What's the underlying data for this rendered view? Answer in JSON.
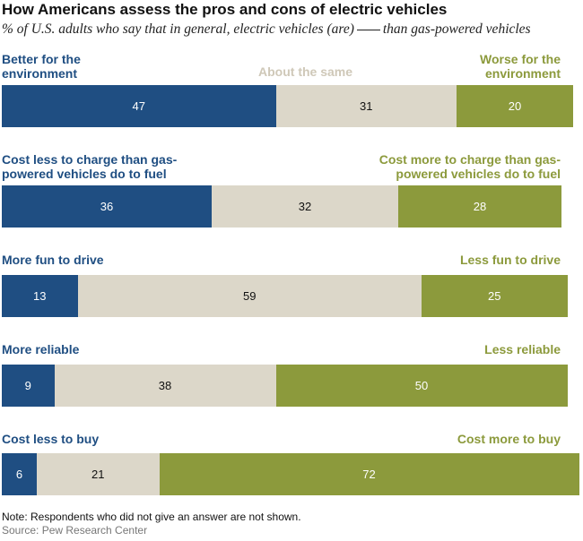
{
  "title": "How Americans assess the pros and cons of electric vehicles",
  "subtitle_before": "% of U.S. adults who say that in general, electric vehicles (are)",
  "subtitle_after": "than gas-powered vehicles",
  "note": "Note: Respondents who did not give an answer are not shown.",
  "source": "Source: Pew Research Center",
  "colors": {
    "positive": "#1f4e82",
    "same": "#dcd7c9",
    "negative": "#8c9a3c"
  },
  "chart_data": {
    "type": "bar",
    "orientation": "horizontal-stacked",
    "middle_label": "About the same",
    "rows": [
      {
        "left_label": "Better for the environment",
        "right_label": "Worse for the environment",
        "values": [
          47,
          31,
          20
        ]
      },
      {
        "left_label": "Cost less to charge than gas-powered vehicles do to fuel",
        "right_label": "Cost more to charge than gas-powered vehicles do to fuel",
        "values": [
          36,
          32,
          28
        ]
      },
      {
        "left_label": "More fun to drive",
        "right_label": "Less fun to drive",
        "values": [
          13,
          59,
          25
        ]
      },
      {
        "left_label": "More reliable",
        "right_label": "Less reliable",
        "values": [
          9,
          38,
          50
        ]
      },
      {
        "left_label": "Cost less to buy",
        "right_label": "Cost more to buy",
        "values": [
          6,
          21,
          72
        ]
      }
    ]
  }
}
